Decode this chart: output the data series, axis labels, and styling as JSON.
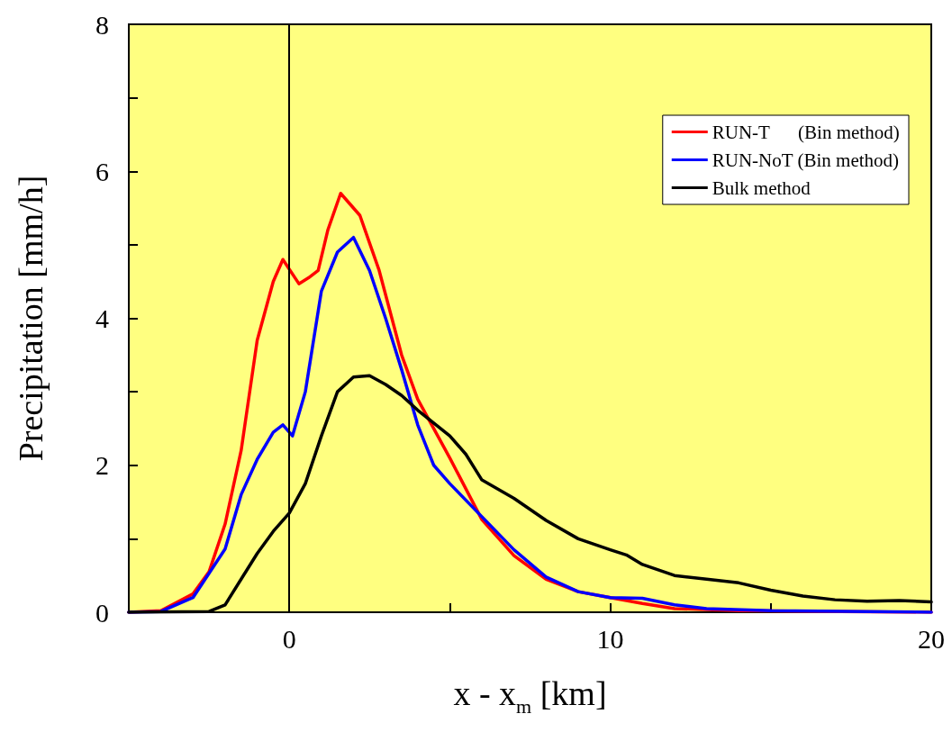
{
  "chart_data": {
    "type": "line",
    "xlabel": "x - x$_{m}$ [km]",
    "ylabel": "Precipitation [mm/h]",
    "xlim": [
      -5,
      20
    ],
    "xticks": [
      {
        "value": -5,
        "label": null
      },
      0,
      {
        "value": 5,
        "label": null
      },
      10,
      {
        "value": 15,
        "label": null
      },
      20
    ],
    "ylim": [
      0,
      8
    ],
    "yticks": [
      0,
      {
        "value": 1,
        "label": null
      },
      2,
      {
        "value": 3,
        "label": null
      },
      4,
      {
        "value": 5,
        "label": null
      },
      6,
      {
        "value": 7,
        "label": null
      },
      8
    ],
    "grid": false,
    "legend": "top right",
    "marker": "none",
    "line_style": "solid",
    "ref_lines": [
      {
        "axis": "x",
        "value": 0,
        "label": null,
        "color": "#000000"
      }
    ],
    "series": [
      {
        "name": "RUN-T      (Bin method)",
        "color": "#ff0000",
        "x": [
          -5,
          -4,
          -3,
          -2.5,
          -2,
          -1.5,
          -1,
          -0.5,
          -0.2,
          0.3,
          0.6,
          0.9,
          1.2,
          1.6,
          2.2,
          2.8,
          3.5,
          4,
          5,
          6,
          7,
          8,
          9,
          10,
          11,
          12,
          14,
          20
        ],
        "values": [
          0,
          0.02,
          0.25,
          0.55,
          1.2,
          2.2,
          3.7,
          4.5,
          4.8,
          4.47,
          4.55,
          4.65,
          5.2,
          5.7,
          5.4,
          4.65,
          3.5,
          2.9,
          2.1,
          1.26,
          0.77,
          0.45,
          0.28,
          0.2,
          0.12,
          0.05,
          0.02,
          0
        ]
      },
      {
        "name": "RUN-NoT (Bin method)",
        "color": "#0000ff",
        "x": [
          -5,
          -4,
          -3,
          -2,
          -1.5,
          -1,
          -0.5,
          -0.2,
          0.1,
          0.5,
          1,
          1.5,
          2,
          2.5,
          3,
          3.5,
          4,
          4.5,
          5,
          6,
          7,
          8,
          9,
          10,
          11,
          12,
          13,
          15,
          20
        ],
        "values": [
          0,
          0.01,
          0.2,
          0.86,
          1.6,
          2.08,
          2.45,
          2.55,
          2.4,
          3.0,
          4.37,
          4.9,
          5.1,
          4.65,
          4.0,
          3.3,
          2.55,
          2.0,
          1.75,
          1.3,
          0.85,
          0.48,
          0.28,
          0.2,
          0.19,
          0.1,
          0.05,
          0.02,
          0
        ]
      },
      {
        "name": "Bulk method",
        "color": "#000000",
        "x": [
          -5,
          -2.5,
          -2,
          -1.5,
          -1,
          -0.5,
          0,
          0.5,
          1,
          1.5,
          2,
          2.5,
          3,
          3.5,
          4,
          5,
          5.5,
          6,
          7,
          8,
          9,
          10,
          10.5,
          11,
          12,
          13,
          14,
          15,
          16,
          17,
          18,
          19,
          20
        ],
        "values": [
          0,
          0.01,
          0.1,
          0.45,
          0.8,
          1.1,
          1.35,
          1.75,
          2.4,
          3.0,
          3.2,
          3.22,
          3.1,
          2.95,
          2.75,
          2.4,
          2.15,
          1.8,
          1.55,
          1.25,
          1.0,
          0.85,
          0.78,
          0.65,
          0.5,
          0.45,
          0.4,
          0.3,
          0.22,
          0.17,
          0.15,
          0.16,
          0.14
        ]
      }
    ]
  }
}
